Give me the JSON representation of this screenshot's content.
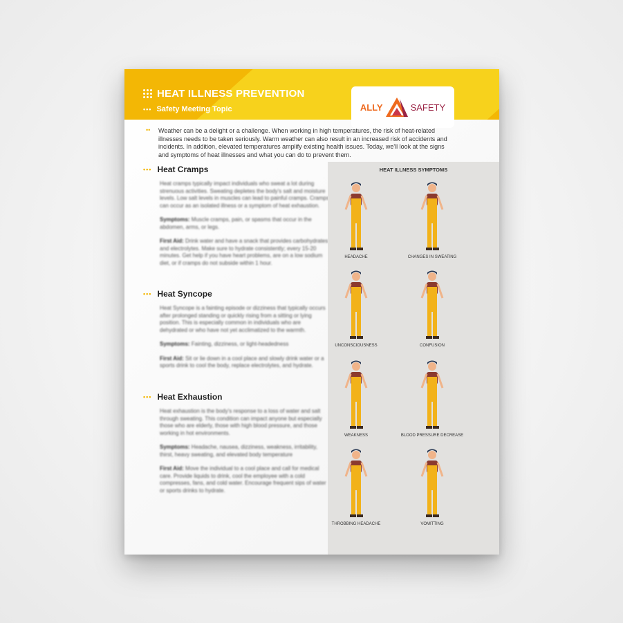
{
  "header": {
    "title": "HEAT ILLNESS PREVENTION",
    "subtitle": "Safety Meeting Topic",
    "logo_text": "ALLY SAFETY",
    "logo_left": "ALLY",
    "logo_right": "SAFETY"
  },
  "intro": "Weather can be a delight or a challenge. When working in high temperatures, the risk of heat-related illnesses needs to be taken seriously. Warm weather can also result in an increased risk of accidents and incidents. In addition, elevated temperatures amplify existing health issues. Today, we'll look at the signs and symptoms of heat illnesses and what you can do to prevent them.",
  "sections": [
    {
      "title": "Heat Cramps",
      "body": "Heat cramps typically impact individuals who sweat a lot during strenuous activities. Sweating depletes the body's salt and moisture levels. Low salt levels in muscles can lead to painful cramps. Cramps can occur as an isolated illness or a symptom of heat exhaustion.",
      "symptoms_label": "Symptoms:",
      "symptoms": "Muscle cramps, pain, or spasms that occur in the abdomen, arms, or legs.",
      "firstaid_label": "First Aid:",
      "firstaid": "Drink water and have a snack that provides carbohydrates and electrolytes. Make sure to hydrate consistently; every 15-20 minutes. Get help if you have heart problems, are on a low sodium diet, or if cramps do not subside within 1 hour."
    },
    {
      "title": "Heat Syncope",
      "body": "Heat Syncope is a fainting episode or dizziness that typically occurs after prolonged standing or quickly rising from a sitting or lying position. This is especially common in individuals who are dehydrated or who have not yet acclimatized to the warmth.",
      "symptoms_label": "Symptoms:",
      "symptoms": "Fainting, dizziness, or light-headedness",
      "firstaid_label": "First Aid:",
      "firstaid": "Sit or lie down in a cool place and slowly drink water or a sports drink to cool the body, replace electrolytes, and hydrate."
    },
    {
      "title": "Heat Exhaustion",
      "body": "Heat exhaustion is the body's response to a loss of water and salt through sweating. This condition can impact anyone but especially those who are elderly, those with high blood pressure, and those working in hot environments.",
      "symptoms_label": "Symptoms:",
      "symptoms": "Headache, nausea, dizziness, weakness, irritability, thirst, heavy sweating, and elevated body temperature",
      "firstaid_label": "First Aid:",
      "firstaid": "Move the individual to a cool place and call for medical care. Provide liquids to drink, cool the employee with a cold compresses, fans, and cold water. Encourage frequent sips of water or sports drinks to hydrate."
    }
  ],
  "panel": {
    "title": "HEAT ILLNESS SYMPTOMS",
    "symptoms": [
      "HEADACHE",
      "CHANGES IN SWEATING",
      "UNCONSCIOUSNESS",
      "CONFUSION",
      "WEAKNESS",
      "BLOOD PRESSURE DECREASE",
      "THROBBING HEADACHE",
      "VOMITTING"
    ]
  },
  "colors": {
    "brand_yellow": "#f3b705",
    "accent_yellow": "#f7d21c",
    "logo_orange": "#ee6a1f",
    "logo_maroon": "#9a2344",
    "panel_bg": "#e2e1df"
  }
}
